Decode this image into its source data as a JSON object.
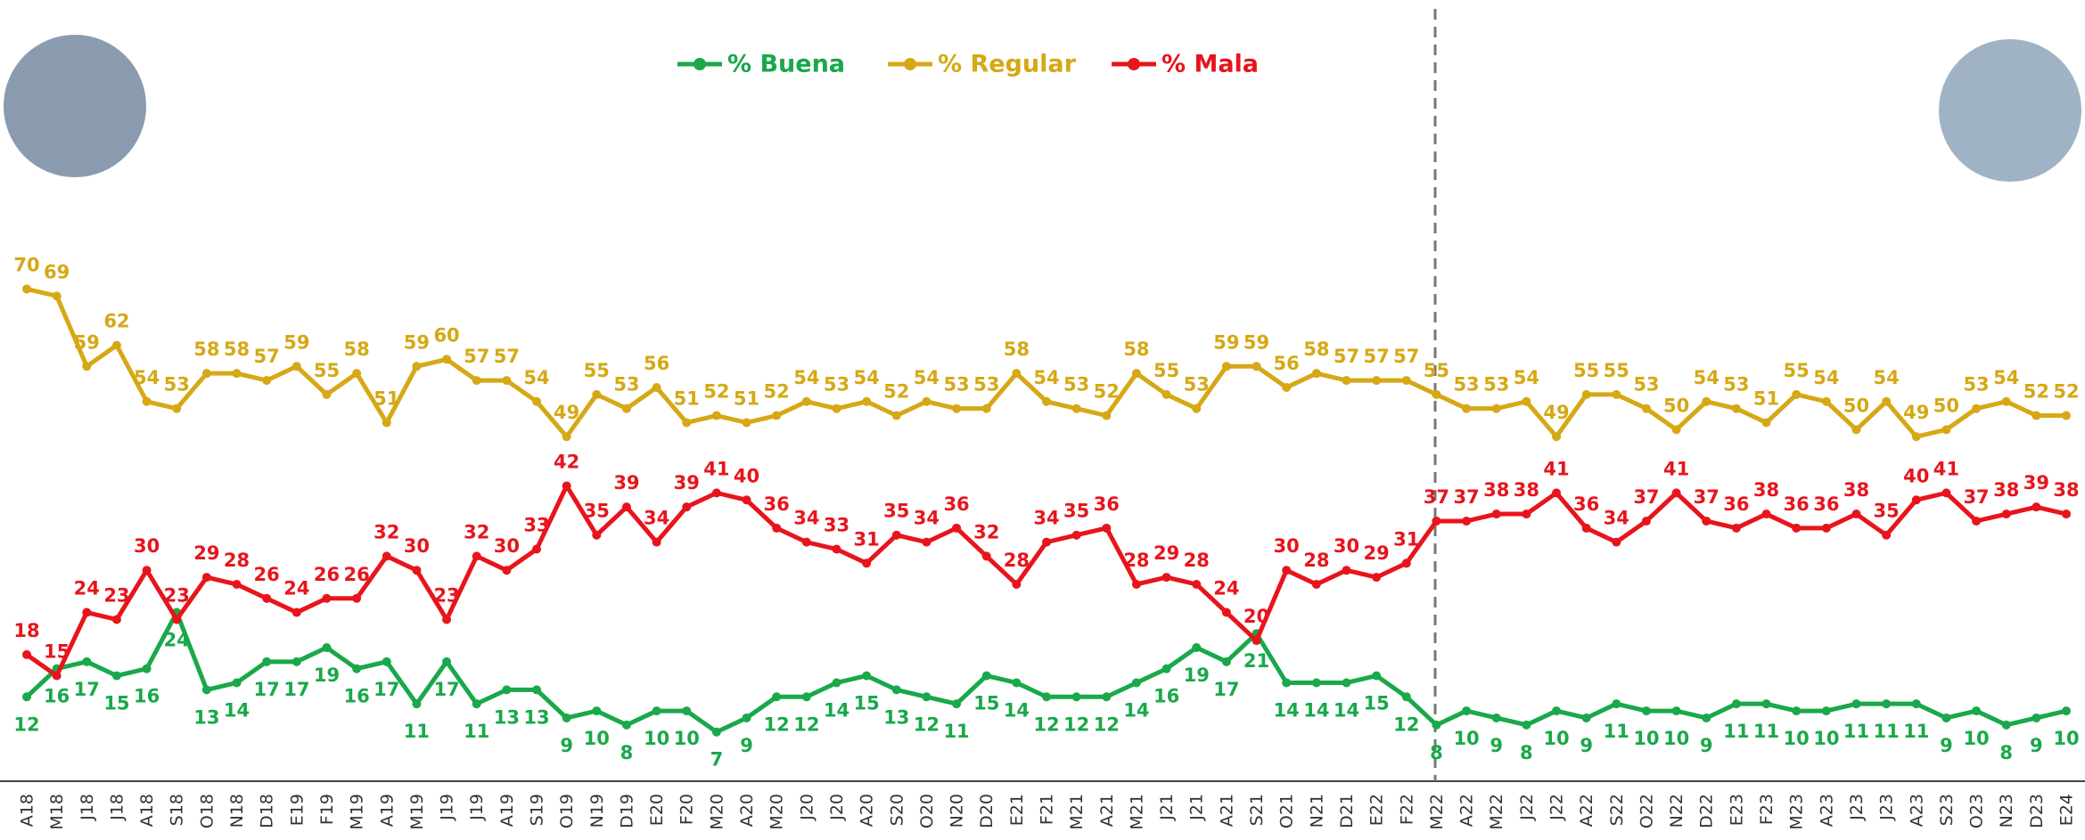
{
  "chart_data": {
    "type": "line",
    "categories": [
      "A18",
      "M18",
      "J18",
      "J18",
      "A18",
      "S18",
      "O18",
      "N18",
      "D18",
      "E19",
      "F19",
      "M19",
      "A19",
      "M19",
      "J19",
      "J19",
      "A19",
      "S19",
      "O19",
      "N19",
      "D19",
      "E20",
      "F20",
      "M20",
      "A20",
      "M20",
      "J20",
      "J20",
      "A20",
      "S20",
      "O20",
      "N20",
      "D20",
      "E21",
      "F21",
      "M21",
      "A21",
      "M21",
      "J21",
      "J21",
      "A21",
      "S21",
      "O21",
      "N21",
      "D21",
      "E22",
      "F22",
      "M22",
      "A22",
      "M22",
      "J22",
      "J22",
      "A22",
      "S22",
      "O22",
      "N22",
      "D22",
      "E23",
      "F23",
      "M23",
      "A23",
      "J23",
      "J23",
      "A23",
      "S23",
      "O23",
      "N23",
      "D23",
      "E24"
    ],
    "series": [
      {
        "name": "% Buena",
        "color": "#19a84a",
        "values": [
          12,
          16,
          17,
          15,
          16,
          24,
          13,
          14,
          17,
          17,
          19,
          16,
          17,
          11,
          17,
          11,
          13,
          13,
          9,
          10,
          8,
          10,
          10,
          7,
          9,
          12,
          12,
          14,
          15,
          13,
          12,
          11,
          15,
          14,
          12,
          12,
          12,
          14,
          16,
          19,
          17,
          21,
          14,
          14,
          14,
          15,
          12,
          8,
          10,
          9,
          8,
          10,
          9,
          11,
          10,
          10,
          9,
          11,
          11,
          10,
          10,
          11,
          11,
          11,
          9,
          10,
          8,
          9,
          10
        ]
      },
      {
        "name": "% Regular",
        "color": "#d6a816",
        "values": [
          70,
          69,
          59,
          62,
          54,
          53,
          58,
          58,
          57,
          59,
          55,
          58,
          51,
          59,
          60,
          57,
          57,
          54,
          49,
          55,
          53,
          56,
          51,
          52,
          51,
          52,
          54,
          53,
          54,
          52,
          54,
          53,
          53,
          58,
          54,
          53,
          52,
          58,
          55,
          53,
          59,
          59,
          56,
          58,
          57,
          57,
          57,
          55,
          53,
          53,
          54,
          49,
          55,
          55,
          53,
          50,
          54,
          53,
          51,
          55,
          54,
          50,
          54,
          49,
          50,
          53,
          54,
          52,
          52
        ]
      },
      {
        "name": "% Mala",
        "color": "#e8141c",
        "values": [
          18,
          15,
          24,
          23,
          30,
          23,
          29,
          28,
          26,
          24,
          26,
          26,
          32,
          30,
          23,
          32,
          30,
          33,
          42,
          35,
          39,
          34,
          39,
          41,
          40,
          36,
          34,
          33,
          31,
          35,
          34,
          36,
          32,
          28,
          34,
          35,
          36,
          28,
          29,
          28,
          24,
          20,
          30,
          28,
          30,
          29,
          31,
          37,
          37,
          38,
          38,
          41,
          36,
          34,
          37,
          41,
          37,
          36,
          38,
          36,
          36,
          38,
          35,
          40,
          41,
          37,
          38,
          39,
          38
        ]
      }
    ],
    "ylim": [
      0,
      75
    ]
  }
}
